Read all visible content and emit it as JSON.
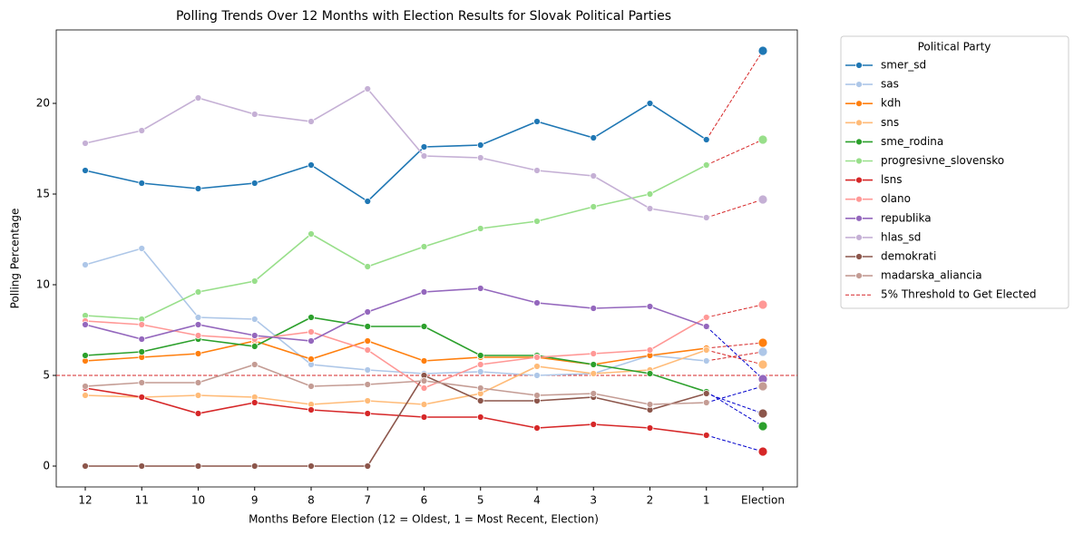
{
  "chart_data": {
    "type": "line",
    "title": "Polling Trends Over 12 Months with Election Results for Slovak Political Parties",
    "x_label": "Months Before Election (12 = Oldest, 1 = Most Recent, Election)",
    "y_label": "Polling Percentage",
    "legend_title": "Political Party",
    "legend_position": "outside right",
    "grid": false,
    "categories": [
      "12",
      "11",
      "10",
      "9",
      "8",
      "7",
      "6",
      "5",
      "4",
      "3",
      "2",
      "1",
      "Election"
    ],
    "ylim": [
      -1.15,
      24.05
    ],
    "yticks": [
      0,
      5,
      10,
      15,
      20
    ],
    "threshold": {
      "value": 5,
      "label": "5% Threshold to Get Elected",
      "color": "#d62728"
    },
    "below_threshold_color": "#0000cc",
    "series": [
      {
        "name": "smer_sd",
        "color": "#1f77b4",
        "values": [
          16.3,
          15.6,
          15.3,
          15.6,
          16.6,
          14.6,
          17.6,
          17.7,
          19.0,
          18.1,
          20.0,
          18.0,
          22.9
        ]
      },
      {
        "name": "sas",
        "color": "#aec7e8",
        "values": [
          11.1,
          12.0,
          8.2,
          8.1,
          5.6,
          5.3,
          5.1,
          5.2,
          5.0,
          5.1,
          6.1,
          5.8,
          6.3
        ]
      },
      {
        "name": "kdh",
        "color": "#ff7f0e",
        "values": [
          5.8,
          6.0,
          6.2,
          6.9,
          5.9,
          6.9,
          5.8,
          6.0,
          6.0,
          5.6,
          6.1,
          6.5,
          6.8
        ]
      },
      {
        "name": "sns",
        "color": "#ffbb78",
        "values": [
          3.9,
          3.8,
          3.9,
          3.8,
          3.4,
          3.6,
          3.4,
          4.0,
          5.5,
          5.1,
          5.3,
          6.4,
          5.6
        ]
      },
      {
        "name": "sme_rodina",
        "color": "#2ca02c",
        "values": [
          6.1,
          6.3,
          7.0,
          6.6,
          8.2,
          7.7,
          7.7,
          6.1,
          6.1,
          5.6,
          5.1,
          4.1,
          2.2
        ]
      },
      {
        "name": "progresivne_slovensko",
        "color": "#98df8a",
        "values": [
          8.3,
          8.1,
          9.6,
          10.2,
          12.8,
          11.0,
          12.1,
          13.1,
          13.5,
          14.3,
          15.0,
          16.6,
          18.0
        ]
      },
      {
        "name": "lsns",
        "color": "#d62728",
        "values": [
          4.3,
          3.8,
          2.9,
          3.5,
          3.1,
          2.9,
          2.7,
          2.7,
          2.1,
          2.3,
          2.1,
          1.7,
          0.8
        ]
      },
      {
        "name": "olano",
        "color": "#ff9896",
        "values": [
          8.0,
          7.8,
          7.2,
          7.0,
          7.4,
          6.4,
          4.3,
          5.6,
          6.0,
          6.2,
          6.4,
          8.2,
          8.9
        ]
      },
      {
        "name": "republika",
        "color": "#9467bd",
        "values": [
          7.8,
          7.0,
          7.8,
          7.2,
          6.9,
          8.5,
          9.6,
          9.8,
          9.0,
          8.7,
          8.8,
          7.7,
          4.8
        ]
      },
      {
        "name": "hlas_sd",
        "color": "#c5b0d5",
        "values": [
          17.8,
          18.5,
          20.3,
          19.4,
          19.0,
          20.8,
          17.1,
          17.0,
          16.3,
          16.0,
          14.2,
          13.7,
          14.7
        ]
      },
      {
        "name": "demokrati",
        "color": "#8c564b",
        "values": [
          0,
          0,
          0,
          0,
          0,
          0,
          5.0,
          3.6,
          3.6,
          3.8,
          3.1,
          4.0,
          2.9
        ]
      },
      {
        "name": "madarska_aliancia",
        "color": "#c49c94",
        "values": [
          4.4,
          4.6,
          4.6,
          5.6,
          4.4,
          4.5,
          4.7,
          4.3,
          3.9,
          4.0,
          3.4,
          3.5,
          4.4
        ]
      }
    ]
  }
}
